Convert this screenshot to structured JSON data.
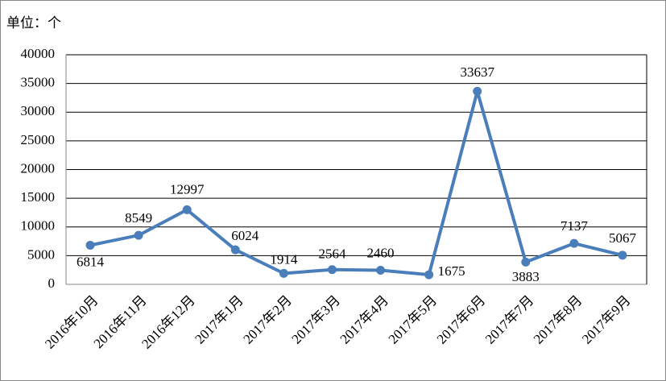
{
  "chart_data": {
    "type": "line",
    "unit_label": "单位：个",
    "categories": [
      "2016年10月",
      "2016年11月",
      "2016年12月",
      "2017年1月",
      "2017年2月",
      "2017年3月",
      "2017年4月",
      "2017年5月",
      "2017年6月",
      "2017年7月",
      "2017年8月",
      "2017年9月"
    ],
    "values": [
      6814,
      8549,
      12997,
      6024,
      1914,
      2564,
      2460,
      1675,
      33637,
      3883,
      7137,
      5067
    ],
    "color": "#4a7ebb",
    "ylim": [
      0,
      40000
    ],
    "yticks": [
      0,
      5000,
      10000,
      15000,
      20000,
      25000,
      30000,
      35000,
      40000
    ],
    "grid": true
  }
}
